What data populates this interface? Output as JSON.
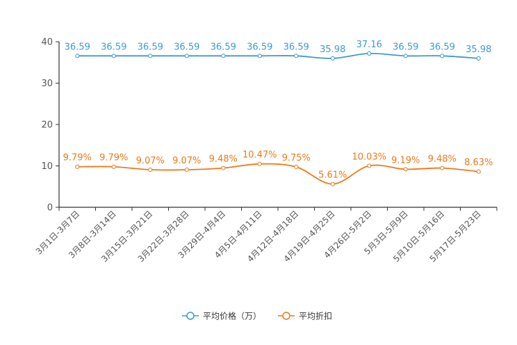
{
  "chart_data": {
    "type": "line",
    "categories": [
      "3月1日-3月7日",
      "3月8日-3月14日",
      "3月15日-3月21日",
      "3月22日-3月28日",
      "3月29日-4月4日",
      "4月5日-4月11日",
      "4月12日-4月18日",
      "4月19日-4月25日",
      "4月26日-5月2日",
      "5月3日-5月9日",
      "5月10日-5月16日",
      "5月17日-5月23日"
    ],
    "ylim": [
      0,
      40
    ],
    "yticks": [
      0,
      10,
      20,
      30,
      40
    ],
    "series": [
      {
        "name": "平均价格（万）",
        "color": "#3a9bd0",
        "values": [
          36.59,
          36.59,
          36.59,
          36.59,
          36.59,
          36.59,
          36.59,
          35.98,
          37.16,
          36.59,
          36.59,
          35.98
        ],
        "labels": [
          "36.59",
          "36.59",
          "36.59",
          "36.59",
          "36.59",
          "36.59",
          "36.59",
          "35.98",
          "37.16",
          "36.59",
          "36.59",
          "35.98"
        ]
      },
      {
        "name": "平均折扣",
        "color": "#f07818",
        "values": [
          9.79,
          9.79,
          9.07,
          9.07,
          9.48,
          10.47,
          9.75,
          5.61,
          10.03,
          9.19,
          9.48,
          8.63
        ],
        "labels": [
          "9.79%",
          "9.79%",
          "9.07%",
          "9.07%",
          "9.48%",
          "10.47%",
          "9.75%",
          "5.61%",
          "10.03%",
          "9.19%",
          "9.48%",
          "8.63%"
        ]
      }
    ],
    "legend_position": "bottom-center"
  }
}
